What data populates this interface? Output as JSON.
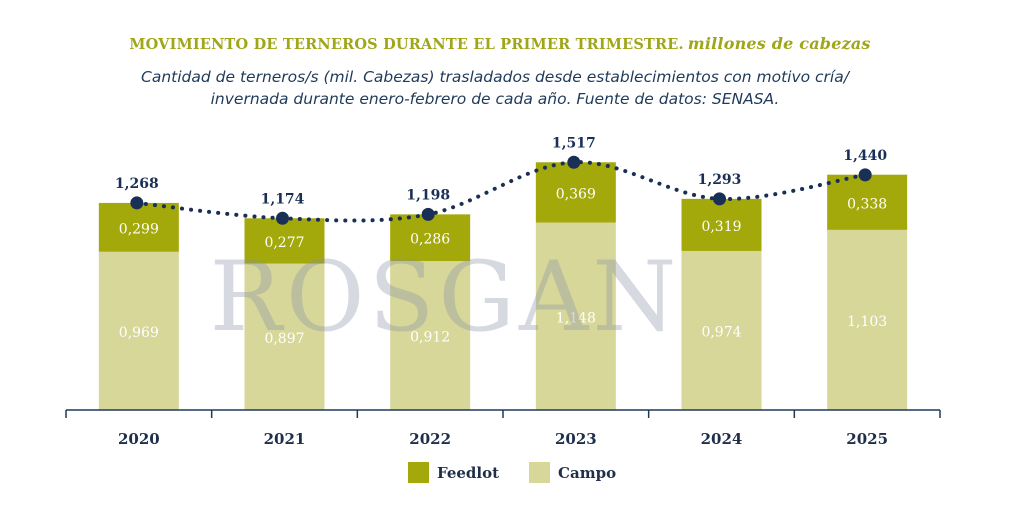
{
  "title": "MOVIMIENTO DE TERNEROS DURANTE EL PRIMER TRIMESTRE.",
  "title_units": "millones de cabezas",
  "subtitle_line1": "Cantidad de terneros/s (mil. Cabezas) trasladados desde establecimientos con motivo cría/",
  "subtitle_line2": "invernada durante enero-febrero de cada año. Fuente de datos: SENASA.",
  "watermark": "ROSGAN",
  "colors": {
    "feedlot": "#a3a80b",
    "campo": "#d7d79a",
    "line": "#1a2f55",
    "title": "#9fa617",
    "axis": "#1f3a5a"
  },
  "legend": [
    {
      "label": "Feedlot",
      "color": "#a3a80b"
    },
    {
      "label": "Campo",
      "color": "#d7d79a"
    }
  ],
  "chart_data": {
    "type": "bar",
    "stacked": true,
    "categories": [
      "2020",
      "2021",
      "2022",
      "2023",
      "2024",
      "2025"
    ],
    "series": [
      {
        "name": "Campo",
        "values": [
          0.969,
          0.897,
          0.912,
          1.148,
          0.974,
          1.103
        ],
        "labels": [
          "0,969",
          "0,897",
          "0,912",
          "1,148",
          "0,974",
          "1,103"
        ]
      },
      {
        "name": "Feedlot",
        "values": [
          0.299,
          0.277,
          0.286,
          0.369,
          0.319,
          0.338
        ],
        "labels": [
          "0,299",
          "0,277",
          "0,286",
          "0,369",
          "0,319",
          "0,338"
        ]
      }
    ],
    "totals": {
      "values": [
        1.268,
        1.174,
        1.198,
        1.517,
        1.293,
        1.44
      ],
      "labels": [
        "1,268",
        "1,174",
        "1,198",
        "1,517",
        "1,293",
        "1,440"
      ]
    },
    "ylim": [
      0,
      1.6
    ]
  }
}
